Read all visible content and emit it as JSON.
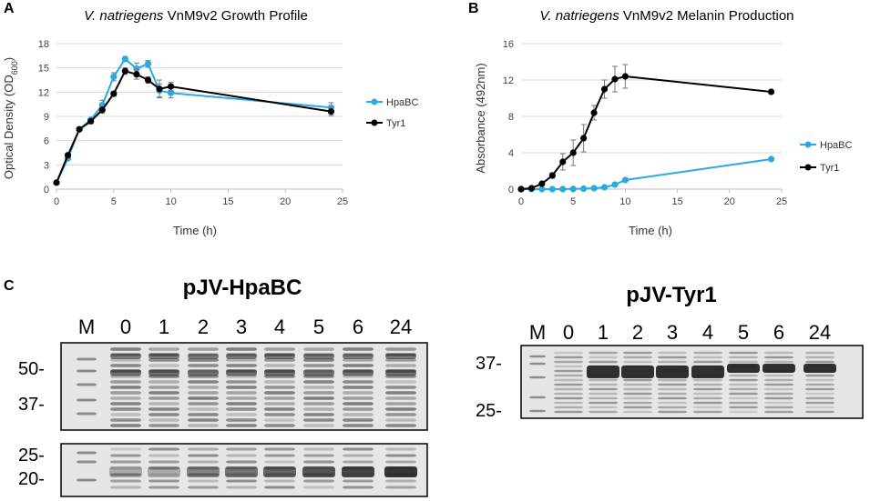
{
  "panel_letters": [
    "A",
    "B",
    "C"
  ],
  "chart_data": [
    {
      "type": "line",
      "panel": "A",
      "title_italic": "V. natriegens",
      "title_rest": " VnM9v2 Growth Profile",
      "xlabel": "Time (h)",
      "ylabel_main": "Optical Density (OD",
      "ylabel_sub": "600",
      "ylabel_end": ")",
      "xlim": [
        0,
        25
      ],
      "ylim": [
        0,
        18
      ],
      "xticks": [
        0,
        5,
        10,
        15,
        20,
        25
      ],
      "yticks": [
        0,
        3,
        6,
        9,
        12,
        15,
        18
      ],
      "legend_position": "right",
      "series": [
        {
          "name": "HpaBC",
          "color": "#29abe2",
          "x": [
            0,
            1,
            2,
            3,
            4,
            5,
            6,
            7,
            8,
            9,
            10,
            24
          ],
          "y": [
            0.8,
            3.8,
            7.4,
            8.6,
            10.4,
            13.9,
            16.1,
            14.9,
            15.5,
            12.2,
            11.9,
            10.1
          ],
          "err": [
            0,
            0,
            0,
            0,
            0.6,
            0.5,
            0.3,
            0.7,
            0.4,
            0.8,
            0.6,
            0.6
          ]
        },
        {
          "name": "Tyr1",
          "color": "#000000",
          "x": [
            0,
            1,
            2,
            3,
            4,
            5,
            6,
            7,
            8,
            9,
            10,
            24
          ],
          "y": [
            0.8,
            4.2,
            7.4,
            8.4,
            9.8,
            11.8,
            14.6,
            14.2,
            13.5,
            12.4,
            12.7,
            9.6
          ],
          "err": [
            0,
            0,
            0,
            0.3,
            0.4,
            0.3,
            0.4,
            0.6,
            0.4,
            1.1,
            0.5,
            0.5
          ]
        }
      ]
    },
    {
      "type": "line",
      "panel": "B",
      "title_italic": "V. natriegens",
      "title_rest": " VnM9v2 Melanin Production",
      "xlabel": "Time (h)",
      "ylabel_main": "Absorbance (492nm)",
      "ylabel_sub": "",
      "ylabel_end": "",
      "xlim": [
        0,
        25
      ],
      "ylim": [
        0,
        16
      ],
      "xticks": [
        0,
        5,
        10,
        15,
        20,
        25
      ],
      "yticks": [
        0,
        4,
        8,
        12,
        16
      ],
      "legend_position": "right",
      "series": [
        {
          "name": "HpaBC",
          "color": "#29abe2",
          "x": [
            0,
            1,
            2,
            3,
            4,
            5,
            6,
            7,
            8,
            9,
            10,
            24
          ],
          "y": [
            0,
            0,
            0,
            0,
            0,
            0.02,
            0.05,
            0.1,
            0.2,
            0.5,
            1.0,
            3.3
          ],
          "err": [
            0,
            0,
            0,
            0,
            0,
            0,
            0,
            0,
            0,
            0,
            0,
            0
          ]
        },
        {
          "name": "Tyr1",
          "color": "#000000",
          "x": [
            0,
            1,
            2,
            3,
            4,
            5,
            6,
            7,
            8,
            9,
            10,
            24
          ],
          "y": [
            0,
            0.1,
            0.6,
            1.5,
            3.0,
            4.0,
            5.6,
            8.4,
            11.0,
            12.1,
            12.4,
            10.7
          ],
          "err": [
            0,
            0,
            0,
            0.3,
            0.9,
            1.4,
            1.5,
            0.8,
            1.0,
            1.4,
            1.3,
            0.2
          ]
        }
      ]
    }
  ],
  "gels": {
    "hpabc": {
      "title": "pJV-HpaBC",
      "lanes": [
        "M",
        "0",
        "1",
        "2",
        "3",
        "4",
        "5",
        "6",
        "24"
      ],
      "markers_top": [
        "50-",
        "37-"
      ],
      "markers_bottom": [
        "25-",
        "20-"
      ]
    },
    "tyr1": {
      "title": "pJV-Tyr1",
      "lanes": [
        "M",
        "0",
        "1",
        "2",
        "3",
        "4",
        "5",
        "6",
        "24"
      ],
      "markers": [
        "37-",
        "25-"
      ]
    }
  }
}
